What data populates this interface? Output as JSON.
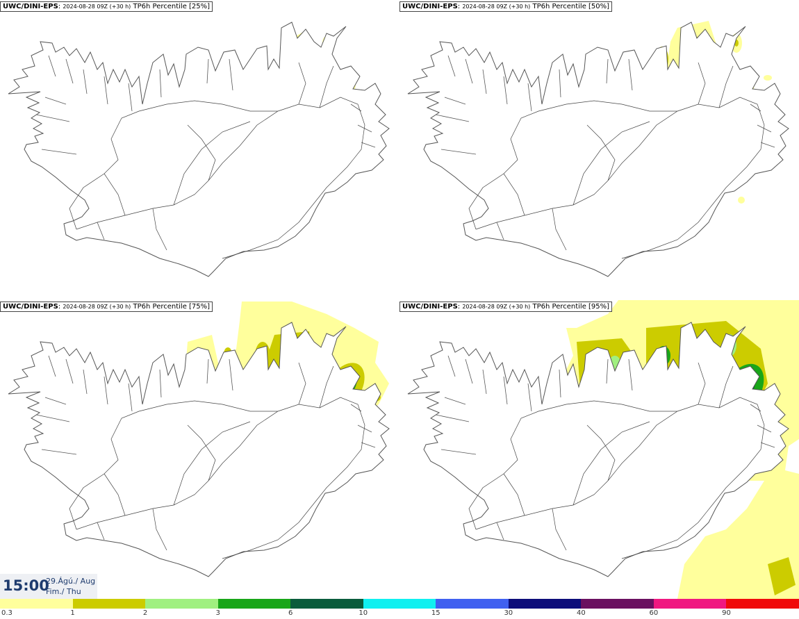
{
  "panels": [
    {
      "source": "UWC/DINI-EPS",
      "run": "2024-08-28 09Z (+30 h)",
      "field": "TP6h Percentile [25%]"
    },
    {
      "source": "UWC/DINI-EPS",
      "run": "2024-08-28 09Z (+30 h)",
      "field": "TP6h Percentile [50%]"
    },
    {
      "source": "UWC/DINI-EPS",
      "run": "2024-08-28 09Z (+30 h)",
      "field": "TP6h Percentile [75%]"
    },
    {
      "source": "UWC/DINI-EPS",
      "run": "2024-08-28 09Z (+30 h)",
      "field": "TP6h Percentile [95%]"
    }
  ],
  "valid_time": {
    "hour": "15:00",
    "date": "29.Ágú./ Aug",
    "weekday": "Fim./ Thu"
  },
  "legend": {
    "ticks": [
      "0.3",
      "1",
      "2",
      "3",
      "6",
      "10",
      "15",
      "30",
      "40",
      "60",
      "90"
    ],
    "colors": [
      "#ffff9c",
      "#cccc00",
      "#a0f080",
      "#19a619",
      "#0a5c3c",
      "#10f0f0",
      "#4060f0",
      "#0c0c7a",
      "#6a1060",
      "#f01880",
      "#f00a0a"
    ]
  },
  "colors": {
    "coast": "#555555",
    "roads": "#444444",
    "precip_levels": {
      "l0_3": "#ffff9c",
      "l1": "#cccc00",
      "l2": "#a0f080",
      "l3": "#19a619",
      "l6": "#0a5c3c",
      "l10": "#10f0f0"
    }
  }
}
